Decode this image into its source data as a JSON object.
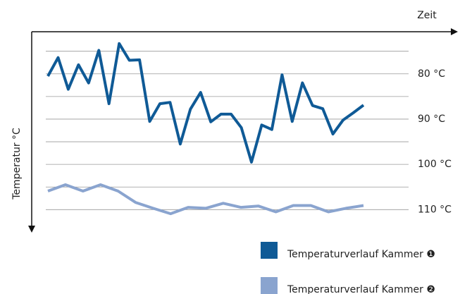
{
  "chart_data": {
    "type": "line",
    "x_label": "Zeit",
    "y_label": "Temperatur °C",
    "ylim": [
      71,
      114
    ],
    "y_inverted": true,
    "yticks": [
      {
        "value": 80,
        "label": "80 °C"
      },
      {
        "value": 90,
        "label": "90 °C"
      },
      {
        "value": 100,
        "label": "100 °C"
      },
      {
        "value": 110,
        "label": "110 °C"
      }
    ],
    "minor_yticks": [
      75,
      85,
      95,
      105
    ],
    "grid": true,
    "series": [
      {
        "name": "Temperaturverlauf Kammer ❶",
        "color": "#0f5a96",
        "values": [
          80.5,
          76.4,
          83.4,
          78.0,
          82.0,
          74.8,
          86.6,
          73.3,
          77.0,
          76.9,
          90.5,
          86.6,
          86.3,
          95.5,
          87.8,
          84.1,
          90.6,
          88.9,
          88.9,
          91.9,
          99.5,
          91.3,
          92.3,
          80.2,
          90.5,
          82.0,
          87.0,
          87.7,
          93.3,
          90.2,
          88.6,
          86.9
        ]
      },
      {
        "name": "Temperaturverlauf Kammer ❷",
        "color": "#8aa4cf",
        "values": [
          105.9,
          104.5,
          105.9,
          104.5,
          105.9,
          108.4,
          109.7,
          110.9,
          109.5,
          109.7,
          108.6,
          109.5,
          109.2,
          110.5,
          109.1,
          109.1,
          110.5,
          109.7,
          109.1
        ]
      }
    ]
  }
}
